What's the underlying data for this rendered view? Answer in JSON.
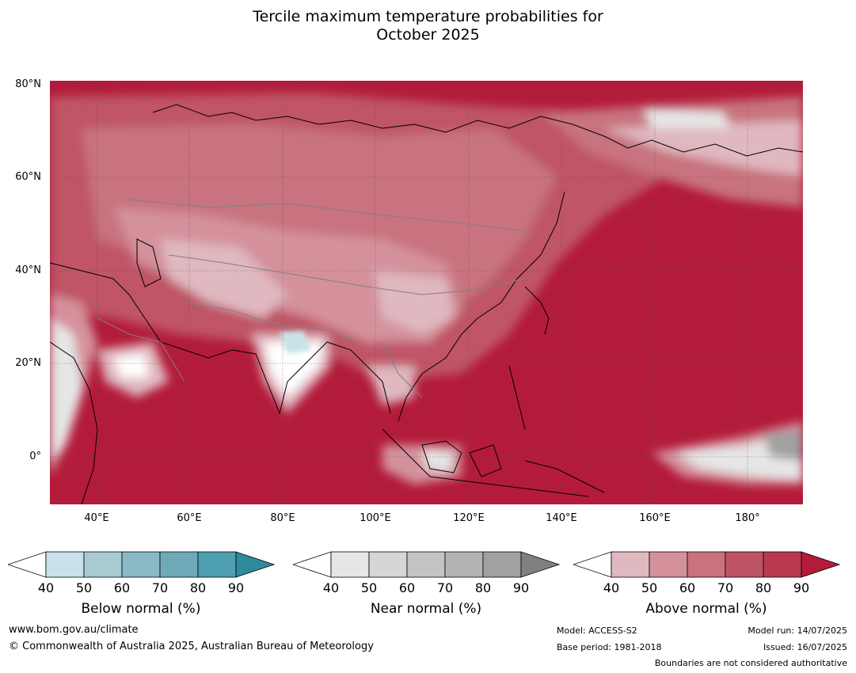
{
  "title": {
    "line1": "Tercile maximum temperature probabilities for",
    "line2": "October 2025"
  },
  "map": {
    "lat_labels": [
      "80°N",
      "60°N",
      "40°N",
      "20°N",
      "0°"
    ],
    "lon_labels": [
      "40°E",
      "60°E",
      "80°E",
      "100°E",
      "120°E",
      "140°E",
      "160°E",
      "180°"
    ]
  },
  "colorbars": [
    {
      "title": "Below normal (%)",
      "ticks": [
        "40",
        "50",
        "60",
        "70",
        "80",
        "90"
      ],
      "colors": [
        "#ffffff",
        "#c9e2ea",
        "#a8cbd4",
        "#8ab8c4",
        "#6eaab8",
        "#4ea0b0",
        "#2f8a9c"
      ]
    },
    {
      "title": "Near normal (%)",
      "ticks": [
        "40",
        "50",
        "60",
        "70",
        "80",
        "90"
      ],
      "colors": [
        "#ffffff",
        "#e6e6e6",
        "#d6d6d6",
        "#c4c4c4",
        "#b3b3b3",
        "#a1a1a1",
        "#808080"
      ]
    },
    {
      "title": "Above normal (%)",
      "ticks": [
        "40",
        "50",
        "60",
        "70",
        "80",
        "90"
      ],
      "colors": [
        "#ffffff",
        "#e0b8bf",
        "#d4919c",
        "#c8737f",
        "#bf5466",
        "#b93a4f",
        "#b31b3a"
      ]
    }
  ],
  "footer": {
    "url": "www.bom.gov.au/climate",
    "copyright": "© Commonwealth of Australia 2025, Australian Bureau of Meteorology",
    "model": "Model: ACCESS-S2",
    "base_period": "Base period: 1981-2018",
    "model_run": "Model run: 14/07/2025",
    "issued": "Issued: 16/07/2025",
    "disclaimer": "Boundaries are not considered authoritative"
  }
}
